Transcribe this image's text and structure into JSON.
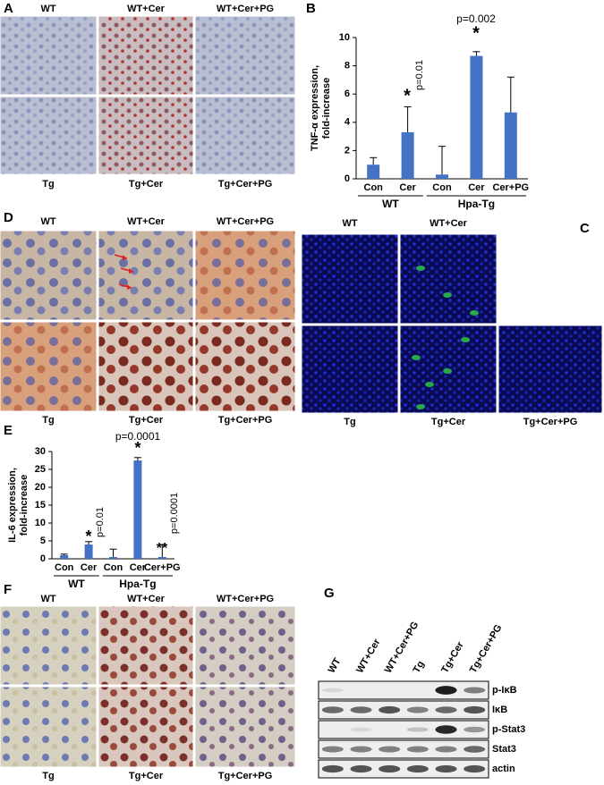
{
  "panels": {
    "A": {
      "label": "A",
      "top_labels": [
        "WT",
        "WT+Cer",
        "WT+Cer+PG"
      ],
      "bottom_labels": [
        "Tg",
        "Tg+Cer",
        "Tg+Cer+PG"
      ]
    },
    "D": {
      "label": "D",
      "top_labels": [
        "WT",
        "WT+Cer",
        "WT+Cer+PG"
      ],
      "bottom_labels": [
        "Tg",
        "Tg+Cer",
        "Tg+Cer+PG"
      ]
    },
    "C": {
      "label": "C",
      "top_labels": [
        "WT",
        "WT+Cer"
      ],
      "bottom_labels": [
        "Tg",
        "Tg+Cer",
        "Tg+Cer+PG"
      ]
    },
    "F": {
      "label": "F",
      "top_labels": [
        "WT",
        "WT+Cer",
        "WT+Cer+PG"
      ],
      "bottom_labels": [
        "Tg",
        "Tg+Cer",
        "Tg+Cer+PG"
      ]
    },
    "G": {
      "label": "G",
      "lanes": [
        "WT",
        "WT+Cer",
        "WT+Cer+PG",
        "Tg",
        "Tg+Cer",
        "Tg+Cer+PG"
      ],
      "rows": [
        "p-IκB",
        "IκB",
        "p-Stat3",
        "Stat3",
        "actin"
      ]
    }
  },
  "chart_data": [
    {
      "type": "bar",
      "label": "B",
      "ylabel": [
        "TNF-α expression,",
        "fold-increase"
      ],
      "categories": [
        "Con",
        "Cer",
        "Con",
        "Cer",
        "Cer+PG"
      ],
      "groups": [
        "WT",
        "Hpa-Tg"
      ],
      "values": [
        1.0,
        3.3,
        0.3,
        8.7,
        4.7
      ],
      "errors": [
        0.5,
        1.8,
        2.0,
        0.3,
        2.5
      ],
      "color": "#4472c4",
      "ylim": [
        0,
        10
      ],
      "yticks": [
        0,
        2,
        4,
        6,
        8,
        10
      ],
      "annotations": [
        "*",
        "p=0.01",
        "p=0.002",
        "*"
      ]
    },
    {
      "type": "bar",
      "label": "E",
      "ylabel": [
        "IL-6 expression,",
        "fold-increase"
      ],
      "categories": [
        "Con",
        "Cer",
        "Con",
        "Cer",
        "Cer+PG"
      ],
      "groups": [
        "WT",
        "Hpa-Tg"
      ],
      "values": [
        1.0,
        4.0,
        0.5,
        27.5,
        0.5
      ],
      "errors": [
        0.3,
        0.8,
        2.2,
        0.8,
        3.5
      ],
      "color": "#4472c4",
      "ylim": [
        0,
        30
      ],
      "yticks": [
        0,
        5,
        10,
        15,
        20,
        25,
        30
      ],
      "annotations": [
        "*",
        "p=0.01",
        "p=0.0001",
        "*",
        "**",
        "p=0.0001"
      ]
    }
  ]
}
